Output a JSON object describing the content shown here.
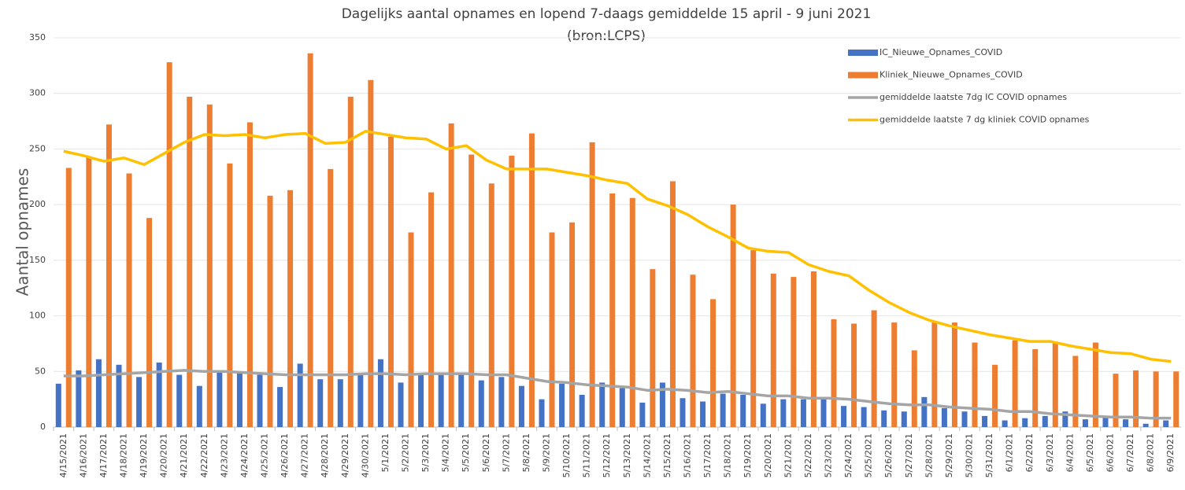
{
  "chart_data": {
    "type": "bar",
    "title": "Dagelijks aantal opnames en lopend 7-daags gemiddelde 15 april - 9 juni 2021",
    "subtitle": "(bron:LCPS)",
    "y_label": "Aantal opnames",
    "categories": [
      "4/15/2021",
      "4/16/2021",
      "4/17/2021",
      "4/18/2021",
      "4/19/2021",
      "4/20/2021",
      "4/21/2021",
      "4/22/2021",
      "4/23/2021",
      "4/24/2021",
      "4/25/2021",
      "4/26/2021",
      "4/27/2021",
      "4/28/2021",
      "4/29/2021",
      "4/30/2021",
      "5/1/2021",
      "5/2/2021",
      "5/3/2021",
      "5/4/2021",
      "5/5/2021",
      "5/6/2021",
      "5/7/2021",
      "5/8/2021",
      "5/9/2021",
      "5/10/2021",
      "5/11/2021",
      "5/12/2021",
      "5/13/2021",
      "5/14/2021",
      "5/15/2021",
      "5/16/2021",
      "5/17/2021",
      "5/18/2021",
      "5/19/2021",
      "5/20/2021",
      "5/21/2021",
      "5/22/2021",
      "5/23/2021",
      "5/24/2021",
      "5/25/2021",
      "5/26/2021",
      "5/27/2021",
      "5/28/2021",
      "5/29/2021",
      "5/30/2021",
      "5/31/2021",
      "6/1/2021",
      "6/2/2021",
      "6/3/2021",
      "6/4/2021",
      "6/5/2021",
      "6/6/2021",
      "6/7/2021",
      "6/8/2021",
      "6/9/2021"
    ],
    "series": [
      {
        "name": "IC_Nieuwe_Opnames_COVID",
        "color": "#4472c4",
        "type": "bar",
        "values": [
          39,
          51,
          61,
          56,
          45,
          58,
          47,
          37,
          50,
          50,
          47,
          36,
          57,
          43,
          43,
          48,
          61,
          40,
          47,
          47,
          48,
          42,
          45,
          37,
          25,
          39,
          29,
          40,
          35,
          22,
          40,
          26,
          23,
          30,
          29,
          21,
          25,
          25,
          26,
          19,
          18,
          15,
          14,
          27,
          17,
          14,
          10,
          6,
          8,
          10,
          14,
          7,
          10,
          7,
          3,
          6
        ]
      },
      {
        "name": "Kliniek_Nieuwe_Opnames_COVID",
        "color": "#ed7d31",
        "type": "bar",
        "values": [
          233,
          243,
          272,
          228,
          188,
          328,
          297,
          290,
          237,
          274,
          208,
          213,
          336,
          232,
          297,
          312,
          261,
          175,
          211,
          273,
          245,
          219,
          244,
          264,
          175,
          184,
          256,
          210,
          206,
          142,
          221,
          137,
          115,
          200,
          159,
          138,
          135,
          140,
          97,
          93,
          105,
          94,
          69,
          94,
          94,
          76,
          56,
          78,
          70,
          76,
          64,
          76,
          48,
          51,
          50,
          50
        ]
      },
      {
        "name": "gemiddelde laatste 7dg IC COVID opnames",
        "color": "#a5a5a5",
        "type": "line",
        "values": [
          46,
          46,
          47,
          48,
          49,
          50,
          51,
          50,
          50,
          49,
          48,
          47,
          47,
          47,
          47,
          48,
          48,
          47,
          48,
          48,
          48,
          47,
          47,
          44,
          41,
          40,
          38,
          37,
          36,
          33,
          34,
          33,
          31,
          32,
          30,
          28,
          28,
          26,
          26,
          25,
          23,
          21,
          20,
          20,
          18,
          17,
          16,
          14,
          14,
          12,
          11,
          10,
          9,
          9,
          8,
          8
        ]
      },
      {
        "name": "gemiddelde laatste 7 dg kliniek COVID opnames",
        "color": "#ffc000",
        "type": "line",
        "values": [
          248,
          244,
          239,
          242,
          236,
          246,
          256,
          263,
          262,
          263,
          260,
          263,
          264,
          255,
          256,
          266,
          263,
          260,
          259,
          250,
          253,
          240,
          232,
          232,
          232,
          229,
          226,
          222,
          219,
          205,
          199,
          191,
          180,
          171,
          161,
          158,
          157,
          146,
          140,
          136,
          123,
          112,
          103,
          96,
          91,
          87,
          83,
          80,
          77,
          77,
          73,
          70,
          67,
          66,
          61,
          59
        ]
      }
    ],
    "ylim": [
      0,
      350
    ],
    "yticks": [
      0,
      50,
      100,
      150,
      200,
      250,
      300,
      350
    ],
    "grid": true
  }
}
